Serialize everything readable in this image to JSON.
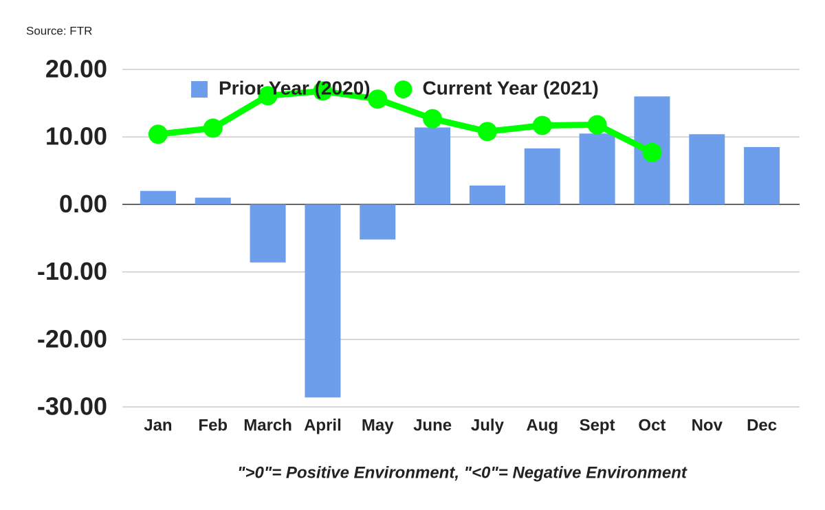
{
  "chart_data": {
    "type": "bar-line",
    "source": "Source: FTR",
    "footnote": "\">0\"= Positive Environment, \"<0\"= Negative Environment",
    "categories": [
      "Jan",
      "Feb",
      "March",
      "April",
      "May",
      "June",
      "July",
      "Aug",
      "Sept",
      "Oct",
      "Nov",
      "Dec"
    ],
    "series": [
      {
        "name": "Prior Year (2020)",
        "type": "bar",
        "color": "#6d9eeb",
        "values": [
          2.0,
          1.0,
          -8.6,
          -28.6,
          -5.2,
          11.4,
          2.8,
          8.3,
          10.5,
          16.0,
          10.4,
          8.5
        ]
      },
      {
        "name": "Current Year (2021)",
        "type": "line",
        "color": "#00ff00",
        "values": [
          10.4,
          11.3,
          16.1,
          16.8,
          15.6,
          12.7,
          10.8,
          11.7,
          11.8,
          7.7,
          null,
          null
        ]
      }
    ],
    "ylim": [
      -30,
      20
    ],
    "yticks": [
      {
        "value": -30,
        "label": "-30.00"
      },
      {
        "value": -20,
        "label": "-20.00"
      },
      {
        "value": -10,
        "label": "-10.00"
      },
      {
        "value": 0,
        "label": "0.00"
      },
      {
        "value": 10,
        "label": "10.00"
      },
      {
        "value": 20,
        "label": "20.00"
      }
    ],
    "grid": true,
    "legend": "top"
  }
}
